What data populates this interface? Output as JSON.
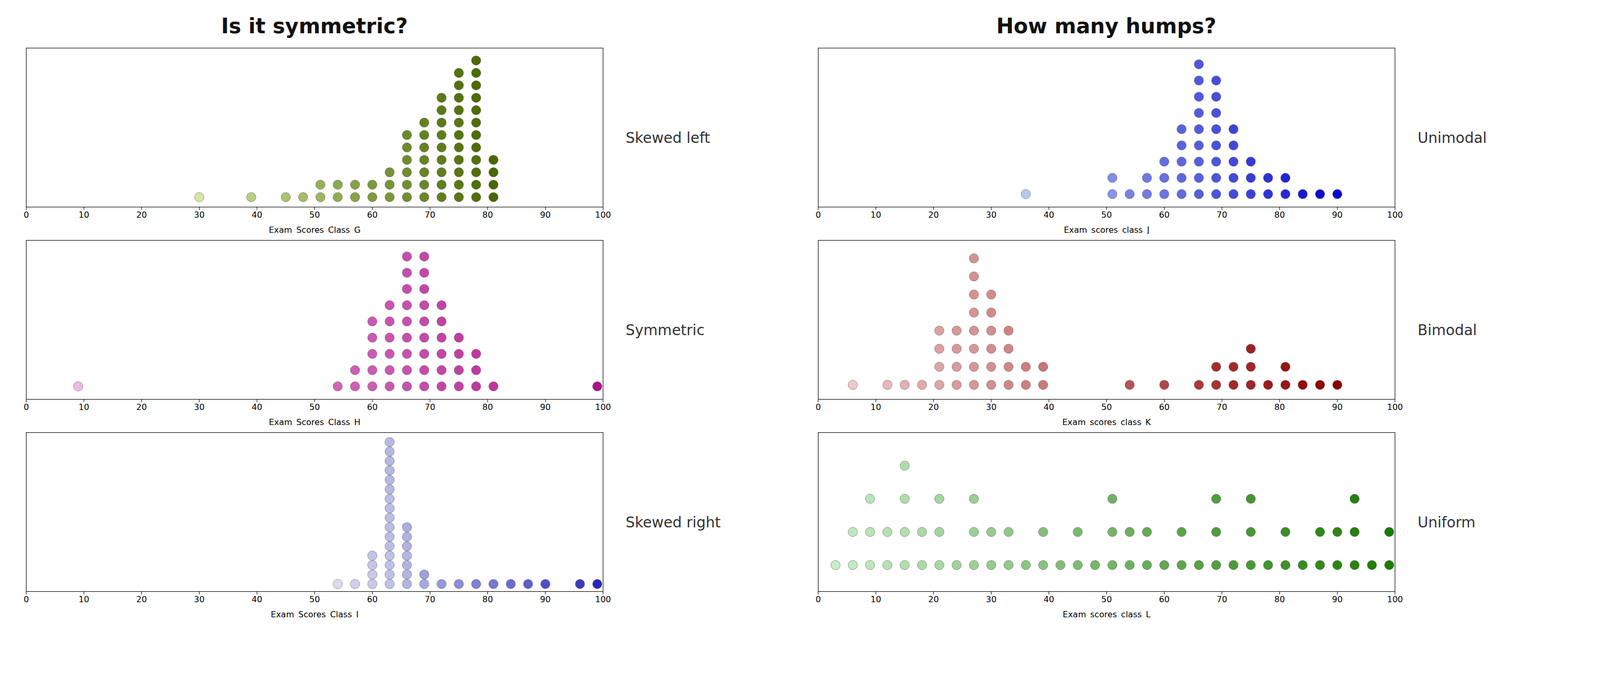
{
  "chart_data": [
    {
      "type": "dotplot",
      "title": "Is it symmetric?",
      "annotation": "Skewed left",
      "xlabel": "Exam_Scores_Class_G",
      "x": [
        30,
        39,
        45,
        48,
        51,
        51,
        54,
        54,
        57,
        57,
        60,
        60,
        63,
        63,
        63,
        66,
        66,
        66,
        66,
        66,
        66,
        69,
        69,
        69,
        69,
        69,
        69,
        69,
        72,
        72,
        72,
        72,
        72,
        72,
        72,
        72,
        72,
        75,
        75,
        75,
        75,
        75,
        75,
        75,
        75,
        75,
        75,
        75,
        78,
        78,
        78,
        78,
        78,
        78,
        78,
        78,
        78,
        78,
        78,
        78,
        81,
        81,
        81,
        81
      ],
      "values": [
        0.5,
        0.5,
        0.5,
        0.5,
        0.5,
        1.5,
        0.5,
        1.5,
        0.5,
        1.5,
        0.5,
        1.5,
        0.5,
        1.5,
        2.5,
        0.5,
        1.5,
        2.5,
        3.5,
        4.5,
        5.5,
        0.5,
        1.5,
        2.5,
        3.5,
        4.5,
        5.5,
        6.5,
        0.5,
        1.5,
        2.5,
        3.5,
        4.5,
        5.5,
        6.5,
        7.5,
        8.5,
        0.5,
        1.5,
        2.5,
        3.5,
        4.5,
        5.5,
        6.5,
        7.5,
        8.5,
        9.5,
        10.5,
        0.5,
        1.5,
        2.5,
        3.5,
        4.5,
        5.5,
        6.5,
        7.5,
        8.5,
        9.5,
        10.5,
        11.5,
        0.5,
        1.5,
        2.5,
        3.5
      ],
      "color_values": [
        30,
        40,
        45,
        47,
        50,
        52,
        54,
        55,
        57,
        58,
        60,
        61,
        62,
        63,
        64,
        65,
        65,
        66,
        66,
        67,
        67,
        68,
        68,
        69,
        69,
        70,
        70,
        70,
        71,
        71,
        71,
        72,
        72,
        72,
        73,
        73,
        73,
        74,
        74,
        74,
        75,
        75,
        75,
        75,
        76,
        76,
        76,
        76,
        77,
        77,
        77,
        77,
        78,
        78,
        78,
        78,
        79,
        79,
        79,
        79,
        80,
        80,
        80,
        80
      ],
      "color_domain": [
        30,
        80
      ],
      "color_range": [
        "#d4e8a0",
        "#4a6800"
      ],
      "xlim": [
        0,
        100
      ],
      "xticks": [
        0,
        10,
        20,
        30,
        40,
        50,
        60,
        70,
        80,
        90,
        100
      ],
      "ylim": [
        -0.3,
        12.5
      ],
      "tick_labels": "x",
      "grid": false
    },
    {
      "type": "dotplot",
      "annotation": "Symmetric",
      "xlabel": "Exam_Scores_Class_H",
      "x": [
        9,
        54,
        57,
        57,
        60,
        60,
        60,
        60,
        60,
        63,
        63,
        63,
        63,
        63,
        63,
        66,
        66,
        66,
        66,
        66,
        66,
        66,
        66,
        66,
        69,
        69,
        69,
        69,
        69,
        69,
        69,
        69,
        69,
        72,
        72,
        72,
        72,
        72,
        72,
        75,
        75,
        75,
        75,
        78,
        78,
        78,
        81,
        99
      ],
      "values": [
        0.5,
        0.5,
        0.5,
        1.5,
        0.5,
        1.5,
        2.5,
        3.5,
        4.5,
        0.5,
        1.5,
        2.5,
        3.5,
        4.5,
        5.5,
        0.5,
        1.5,
        2.5,
        3.5,
        4.5,
        5.5,
        6.5,
        7.5,
        8.5,
        0.5,
        1.5,
        2.5,
        3.5,
        4.5,
        5.5,
        6.5,
        7.5,
        8.5,
        0.5,
        1.5,
        2.5,
        3.5,
        4.5,
        5.5,
        0.5,
        1.5,
        2.5,
        3.5,
        0.5,
        1.5,
        2.5,
        0.5,
        0.5
      ],
      "color_values": [
        10,
        55,
        57,
        58,
        59,
        60,
        60,
        61,
        61,
        62,
        62,
        63,
        63,
        64,
        64,
        65,
        65,
        65,
        66,
        66,
        66,
        67,
        67,
        67,
        68,
        68,
        68,
        69,
        69,
        69,
        70,
        70,
        70,
        71,
        71,
        72,
        72,
        73,
        73,
        74,
        74,
        75,
        76,
        77,
        78,
        79,
        80,
        100
      ],
      "color_domain": [
        10,
        100
      ],
      "color_range": [
        "#f0b8e8",
        "#b0108a"
      ],
      "xlim": [
        0,
        100
      ],
      "xticks": [
        0,
        10,
        20,
        30,
        40,
        50,
        60,
        70,
        80,
        90,
        100
      ],
      "ylim": [
        -0.3,
        9.5
      ],
      "tick_labels": "x",
      "grid": false
    },
    {
      "type": "dotplot",
      "annotation": "Skewed right",
      "xlabel": "Exam_Scores_Class_I",
      "x": [
        54,
        57,
        60,
        60,
        60,
        60,
        63,
        63,
        63,
        63,
        63,
        63,
        63,
        63,
        63,
        63,
        63,
        63,
        63,
        63,
        63,
        63,
        66,
        66,
        66,
        66,
        66,
        66,
        66,
        69,
        69,
        72,
        75,
        78,
        81,
        84,
        87,
        90,
        96,
        99
      ],
      "values": [
        0.5,
        0.5,
        0.5,
        1.5,
        2.5,
        3.5,
        0.5,
        1.5,
        2.5,
        3.5,
        4.5,
        5.5,
        6.5,
        7.5,
        8.5,
        9.5,
        10.5,
        11.5,
        12.5,
        13.5,
        14.5,
        15.5,
        0.5,
        1.5,
        2.5,
        3.5,
        4.5,
        5.5,
        6.5,
        0.5,
        1.5,
        0.5,
        0.5,
        0.5,
        0.5,
        0.5,
        0.5,
        0.5,
        0.5,
        0.5
      ],
      "color_values": [
        55,
        58,
        60,
        60,
        61,
        61,
        62,
        62,
        62,
        62,
        63,
        63,
        63,
        63,
        63,
        63,
        64,
        64,
        64,
        64,
        64,
        64,
        65,
        65,
        65,
        65,
        66,
        66,
        67,
        68,
        70,
        72,
        75,
        78,
        80,
        83,
        86,
        90,
        95,
        100
      ],
      "color_domain": [
        55,
        100
      ],
      "color_range": [
        "#dcdcf0",
        "#2828b8"
      ],
      "xlim": [
        0,
        100
      ],
      "xticks": [
        0,
        10,
        20,
        30,
        40,
        50,
        60,
        70,
        80,
        90,
        100
      ],
      "ylim": [
        -0.3,
        16.5
      ],
      "tick_labels": "x",
      "grid": false
    },
    {
      "type": "dotplot",
      "title": "How many humps?",
      "annotation": "Unimodal",
      "xlabel": "Exam_scores_class_J",
      "x": [
        36,
        51,
        51,
        54,
        57,
        57,
        60,
        60,
        60,
        63,
        63,
        63,
        63,
        63,
        66,
        66,
        66,
        66,
        66,
        66,
        66,
        66,
        66,
        69,
        69,
        69,
        69,
        69,
        69,
        69,
        69,
        72,
        72,
        72,
        72,
        72,
        75,
        75,
        75,
        78,
        78,
        81,
        81,
        84,
        87,
        90
      ],
      "values": [
        0.5,
        0.5,
        1.5,
        0.5,
        0.5,
        1.5,
        0.5,
        1.5,
        2.5,
        0.5,
        1.5,
        2.5,
        3.5,
        4.5,
        0.5,
        1.5,
        2.5,
        3.5,
        4.5,
        5.5,
        6.5,
        7.5,
        8.5,
        0.5,
        1.5,
        2.5,
        3.5,
        4.5,
        5.5,
        6.5,
        7.5,
        0.5,
        1.5,
        2.5,
        3.5,
        4.5,
        0.5,
        1.5,
        2.5,
        0.5,
        1.5,
        0.5,
        1.5,
        0.5,
        0.5,
        0.5
      ],
      "color_values": [
        35,
        50,
        52,
        55,
        57,
        58,
        59,
        60,
        61,
        62,
        63,
        63,
        64,
        64,
        65,
        65,
        65,
        66,
        66,
        66,
        67,
        67,
        67,
        68,
        68,
        68,
        69,
        69,
        69,
        70,
        70,
        71,
        71,
        72,
        72,
        73,
        74,
        75,
        76,
        77,
        78,
        80,
        82,
        85,
        88,
        90
      ],
      "color_domain": [
        35,
        90
      ],
      "color_range": [
        "#b8c8f0",
        "#0808cc"
      ],
      "xlim": [
        0,
        100
      ],
      "xticks": [
        0,
        10,
        20,
        30,
        40,
        50,
        60,
        70,
        80,
        90,
        100
      ],
      "ylim": [
        -0.3,
        9.5
      ],
      "tick_labels": "x",
      "grid": false
    },
    {
      "type": "dotplot",
      "annotation": "Bimodal",
      "xlabel": "Exam_scores_class_K",
      "x": [
        6,
        12,
        15,
        18,
        21,
        21,
        21,
        21,
        24,
        24,
        24,
        24,
        27,
        27,
        27,
        27,
        27,
        27,
        27,
        27,
        30,
        30,
        30,
        30,
        30,
        30,
        33,
        33,
        33,
        33,
        36,
        36,
        39,
        39,
        54,
        60,
        66,
        69,
        69,
        72,
        72,
        75,
        75,
        75,
        78,
        81,
        81,
        84,
        87,
        90
      ],
      "values": [
        0.5,
        0.5,
        0.5,
        0.5,
        0.5,
        1.5,
        2.5,
        3.5,
        0.5,
        1.5,
        2.5,
        3.5,
        0.5,
        1.5,
        2.5,
        3.5,
        4.5,
        5.5,
        6.5,
        7.5,
        0.5,
        1.5,
        2.5,
        3.5,
        4.5,
        5.5,
        0.5,
        1.5,
        2.5,
        3.5,
        0.5,
        1.5,
        0.5,
        1.5,
        0.5,
        0.5,
        0.5,
        0.5,
        1.5,
        0.5,
        1.5,
        0.5,
        1.5,
        2.5,
        0.5,
        0.5,
        1.5,
        0.5,
        0.5,
        0.5
      ],
      "color_values": [
        5,
        12,
        15,
        18,
        20,
        20,
        22,
        22,
        24,
        24,
        25,
        25,
        26,
        26,
        26,
        27,
        27,
        28,
        28,
        28,
        29,
        29,
        30,
        30,
        31,
        31,
        32,
        32,
        33,
        34,
        35,
        36,
        38,
        40,
        55,
        60,
        65,
        68,
        70,
        72,
        72,
        74,
        74,
        76,
        78,
        80,
        82,
        85,
        88,
        90
      ],
      "color_domain": [
        5,
        90
      ],
      "color_range": [
        "#f0c8c8",
        "#8b0000"
      ],
      "xlim": [
        0,
        100
      ],
      "xticks": [
        0,
        10,
        20,
        30,
        40,
        50,
        60,
        70,
        80,
        90,
        100
      ],
      "ylim": [
        -0.3,
        8.5
      ],
      "tick_labels": "x",
      "grid": false
    },
    {
      "type": "dotplot",
      "annotation": "Uniform",
      "xlabel": "Exam_scores_class_L",
      "x": [
        3,
        6,
        6,
        9,
        9,
        9,
        12,
        12,
        15,
        15,
        15,
        15,
        18,
        18,
        21,
        21,
        21,
        24,
        27,
        27,
        27,
        30,
        30,
        33,
        33,
        36,
        39,
        39,
        42,
        45,
        45,
        48,
        51,
        51,
        51,
        54,
        54,
        57,
        57,
        60,
        63,
        63,
        66,
        69,
        69,
        69,
        72,
        75,
        75,
        75,
        78,
        81,
        81,
        84,
        87,
        87,
        90,
        90,
        93,
        93,
        93,
        96,
        99,
        99
      ],
      "values": [
        0.5,
        0.5,
        1.5,
        0.5,
        1.5,
        2.5,
        0.5,
        1.5,
        0.5,
        1.5,
        2.5,
        3.5,
        0.5,
        1.5,
        0.5,
        1.5,
        2.5,
        0.5,
        0.5,
        1.5,
        2.5,
        0.5,
        1.5,
        0.5,
        1.5,
        0.5,
        0.5,
        1.5,
        0.5,
        0.5,
        1.5,
        0.5,
        0.5,
        1.5,
        2.5,
        0.5,
        1.5,
        0.5,
        1.5,
        0.5,
        0.5,
        1.5,
        0.5,
        0.5,
        1.5,
        2.5,
        0.5,
        0.5,
        1.5,
        2.5,
        0.5,
        0.5,
        1.5,
        0.5,
        0.5,
        1.5,
        0.5,
        1.5,
        0.5,
        1.5,
        2.5,
        0.5,
        0.5,
        1.5
      ],
      "color_values": [
        2,
        5,
        6,
        8,
        10,
        10,
        12,
        12,
        14,
        14,
        16,
        16,
        18,
        18,
        20,
        22,
        22,
        24,
        26,
        26,
        28,
        30,
        30,
        32,
        34,
        36,
        38,
        40,
        42,
        44,
        46,
        48,
        50,
        50,
        52,
        54,
        54,
        56,
        58,
        60,
        62,
        64,
        66,
        68,
        70,
        70,
        72,
        74,
        74,
        76,
        78,
        80,
        82,
        84,
        86,
        88,
        90,
        90,
        92,
        94,
        94,
        96,
        98,
        100
      ],
      "color_domain": [
        2,
        100
      ],
      "color_range": [
        "#c8ecc8",
        "#1a7a00"
      ],
      "xlim": [
        0,
        100
      ],
      "xticks": [
        0,
        10,
        20,
        30,
        40,
        50,
        60,
        70,
        80,
        90,
        100
      ],
      "ylim": [
        -0.3,
        4.5
      ],
      "tick_labels": "x",
      "grid": false
    }
  ]
}
